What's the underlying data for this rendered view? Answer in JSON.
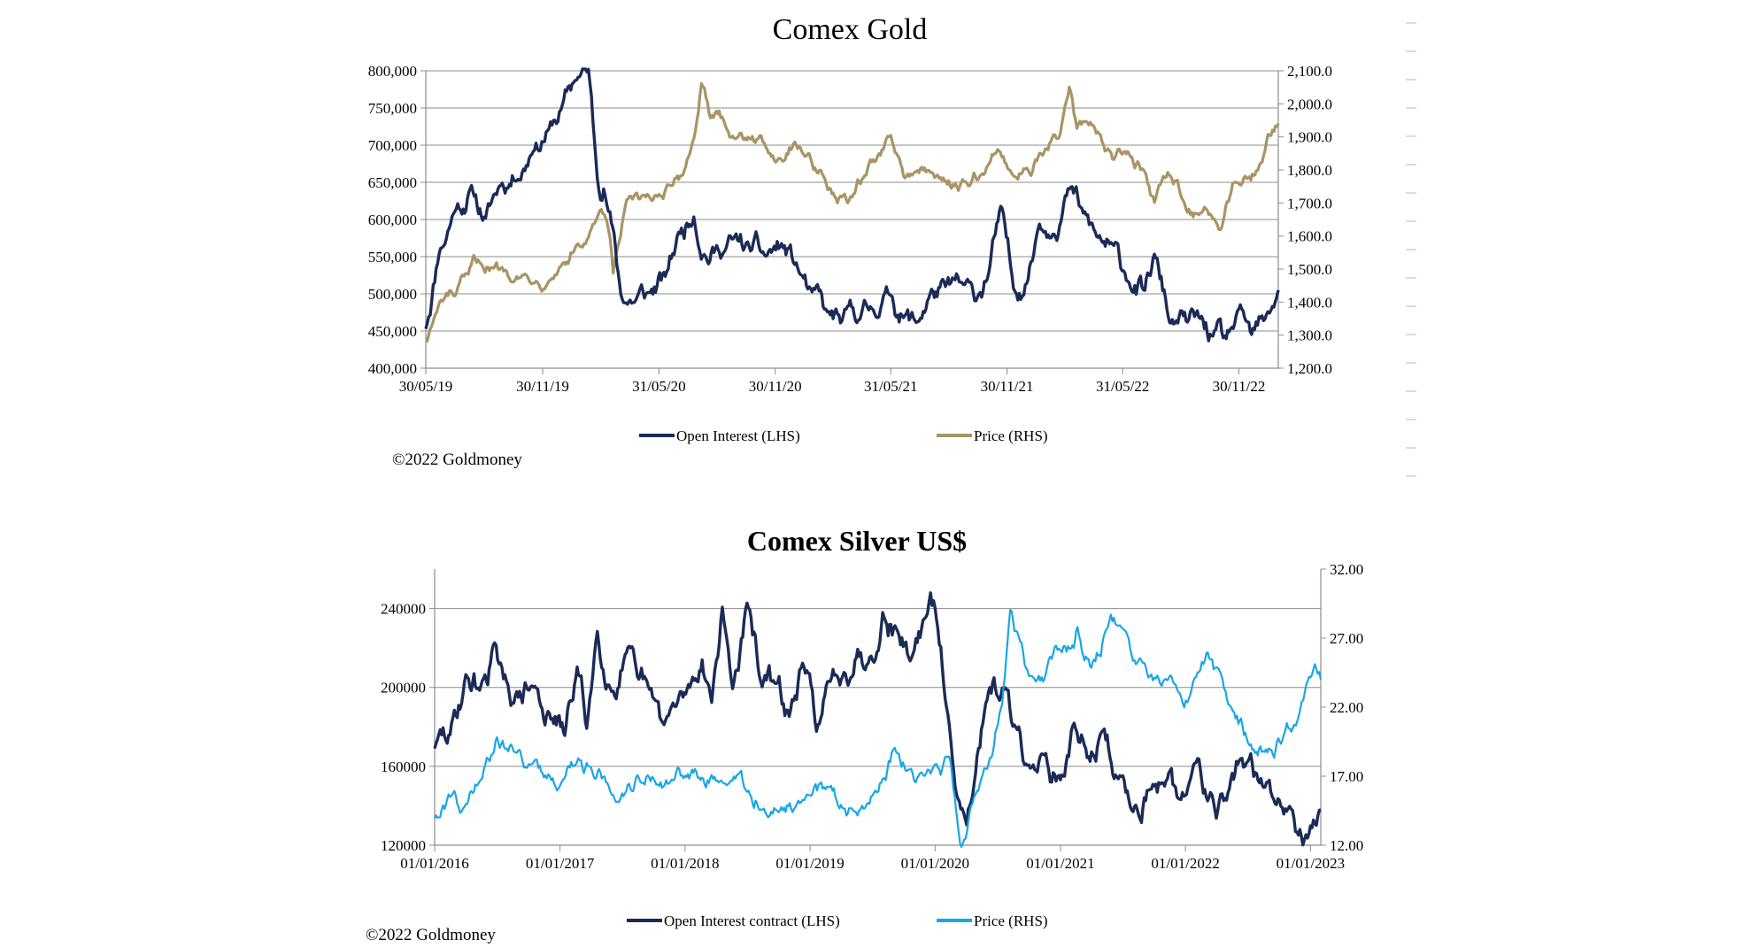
{
  "colors": {
    "navy": "#1b2b57",
    "gold": "#a99465",
    "cyan": "#19a6e4",
    "grid": "#8c8c8c"
  },
  "chart_data": [
    {
      "type": "line",
      "title": "Comex Gold",
      "x_tick_labels": [
        "30/05/19",
        "30/11/19",
        "31/05/20",
        "30/11/20",
        "31/05/21",
        "30/11/21",
        "31/05/22",
        "30/11/22"
      ],
      "x_range": [
        "2019-05-30",
        "2023-01-31"
      ],
      "y_left": {
        "ticks": [
          "400,000",
          "450,000",
          "500,000",
          "550,000",
          "600,000",
          "650,000",
          "700,000",
          "750,000",
          "800,000"
        ],
        "range": [
          400000,
          800000
        ]
      },
      "y_right": {
        "ticks": [
          "1,200.0",
          "1,300.0",
          "1,400.0",
          "1,500.0",
          "1,600.0",
          "1,700.0",
          "1,800.0",
          "1,900.0",
          "2,000.0",
          "2,100.0"
        ],
        "range": [
          1200,
          2100
        ]
      },
      "series": [
        {
          "name": "Open Interest (LHS)",
          "axis": "left",
          "x": [
            "2019-05-30",
            "2019-06-20",
            "2019-07-15",
            "2019-08-10",
            "2019-09-01",
            "2019-09-25",
            "2019-10-20",
            "2019-11-15",
            "2019-12-10",
            "2019-12-31",
            "2020-01-20",
            "2020-02-10",
            "2020-02-24",
            "2020-03-05",
            "2020-03-15",
            "2020-04-01",
            "2020-04-20",
            "2020-05-15",
            "2020-06-10",
            "2020-07-01",
            "2020-07-25",
            "2020-08-15",
            "2020-09-01",
            "2020-09-25",
            "2020-10-20",
            "2020-11-15",
            "2020-12-10",
            "2020-12-31",
            "2021-01-25",
            "2021-02-20",
            "2021-03-15",
            "2021-04-10",
            "2021-05-01",
            "2021-05-31",
            "2021-06-20",
            "2021-07-10",
            "2021-08-01",
            "2021-08-25",
            "2021-09-20",
            "2021-10-10",
            "2021-11-01",
            "2021-11-20",
            "2021-12-10",
            "2021-12-31",
            "2022-01-20",
            "2022-02-10",
            "2022-03-08",
            "2022-03-30",
            "2022-04-20",
            "2022-05-15",
            "2022-06-10",
            "2022-07-05",
            "2022-07-20",
            "2022-08-15",
            "2022-09-10",
            "2022-09-30",
            "2022-10-20",
            "2022-11-10",
            "2022-11-30",
            "2022-12-20",
            "2023-01-10",
            "2023-01-31"
          ],
          "values": [
            455000,
            560000,
            615000,
            640000,
            600000,
            650000,
            660000,
            700000,
            720000,
            750000,
            790000,
            800000,
            660000,
            650000,
            610000,
            500000,
            490000,
            500000,
            520000,
            580000,
            610000,
            550000,
            560000,
            570000,
            560000,
            550000,
            565000,
            540000,
            500000,
            470000,
            460000,
            470000,
            480000,
            500000,
            470000,
            460000,
            500000,
            505000,
            510000,
            490000,
            530000,
            610000,
            510000,
            520000,
            600000,
            590000,
            640000,
            605000,
            575000,
            560000,
            520000,
            500000,
            550000,
            460000,
            460000,
            465000,
            440000,
            435000,
            470000,
            440000,
            460000,
            505000
          ]
        },
        {
          "name": "Price (RHS)",
          "axis": "right",
          "x": [
            "2019-05-30",
            "2019-06-10",
            "2019-06-25",
            "2019-07-15",
            "2019-08-05",
            "2019-08-20",
            "2019-09-05",
            "2019-09-25",
            "2019-10-20",
            "2019-11-15",
            "2019-12-10",
            "2019-12-31",
            "2020-01-20",
            "2020-02-10",
            "2020-02-24",
            "2020-03-10",
            "2020-03-20",
            "2020-04-10",
            "2020-05-01",
            "2020-05-31",
            "2020-06-20",
            "2020-07-10",
            "2020-07-25",
            "2020-08-06",
            "2020-08-20",
            "2020-09-10",
            "2020-10-01",
            "2020-10-25",
            "2020-11-15",
            "2020-12-05",
            "2020-12-31",
            "2021-01-20",
            "2021-02-10",
            "2021-03-08",
            "2021-03-31",
            "2021-04-20",
            "2021-05-10",
            "2021-05-31",
            "2021-06-20",
            "2021-07-10",
            "2021-08-01",
            "2021-08-15",
            "2021-09-10",
            "2021-09-30",
            "2021-10-20",
            "2021-11-15",
            "2021-12-10",
            "2021-12-31",
            "2022-01-25",
            "2022-02-20",
            "2022-03-08",
            "2022-03-20",
            "2022-04-10",
            "2022-05-01",
            "2022-05-15",
            "2022-06-10",
            "2022-07-05",
            "2022-07-20",
            "2022-08-10",
            "2022-09-01",
            "2022-09-28",
            "2022-10-20",
            "2022-11-03",
            "2022-11-20",
            "2022-12-10",
            "2023-01-01",
            "2023-01-15",
            "2023-01-31"
          ],
          "values": [
            1285,
            1340,
            1400,
            1420,
            1470,
            1520,
            1510,
            1500,
            1490,
            1470,
            1480,
            1520,
            1560,
            1590,
            1650,
            1640,
            1480,
            1700,
            1700,
            1730,
            1740,
            1800,
            1900,
            2060,
            1950,
            1950,
            1900,
            1910,
            1870,
            1840,
            1890,
            1850,
            1800,
            1690,
            1720,
            1780,
            1840,
            1900,
            1780,
            1800,
            1790,
            1770,
            1760,
            1750,
            1780,
            1860,
            1790,
            1810,
            1840,
            1900,
            2050,
            1920,
            1940,
            1880,
            1830,
            1850,
            1800,
            1700,
            1790,
            1720,
            1660,
            1640,
            1630,
            1760,
            1790,
            1820,
            1910,
            1940
          ]
        }
      ]
    },
    {
      "type": "line",
      "title": "Comex Silver US$",
      "x_tick_labels": [
        "01/01/2016",
        "01/01/2017",
        "01/01/2018",
        "01/01/2019",
        "01/01/2020",
        "01/01/2021",
        "01/01/2022",
        "01/01/2023"
      ],
      "x_range": [
        "2016-01-01",
        "2023-01-31"
      ],
      "y_left": {
        "ticks": [
          "120000",
          "160000",
          "200000",
          "240000"
        ],
        "range": [
          120000,
          260000
        ]
      },
      "y_right": {
        "ticks": [
          "12.00",
          "17.00",
          "22.00",
          "27.00",
          "32.00"
        ],
        "range": [
          12,
          32
        ]
      },
      "series": [
        {
          "name": "Open Interest contract (LHS)",
          "axis": "left",
          "x": [
            "2016-01-01",
            "2016-02-15",
            "2016-04-01",
            "2016-05-15",
            "2016-06-20",
            "2016-07-20",
            "2016-09-01",
            "2016-10-15",
            "2016-12-01",
            "2017-01-15",
            "2017-02-20",
            "2017-03-20",
            "2017-04-20",
            "2017-06-01",
            "2017-07-10",
            "2017-08-15",
            "2017-09-20",
            "2017-11-01",
            "2017-12-10",
            "2018-01-15",
            "2018-02-20",
            "2018-03-20",
            "2018-04-20",
            "2018-05-20",
            "2018-07-01",
            "2018-08-10",
            "2018-09-20",
            "2018-11-01",
            "2018-12-10",
            "2019-01-20",
            "2019-03-01",
            "2019-04-10",
            "2019-05-20",
            "2019-06-20",
            "2019-08-01",
            "2019-09-10",
            "2019-10-20",
            "2019-12-01",
            "2020-01-01",
            "2020-02-20",
            "2020-03-20",
            "2020-04-20",
            "2020-06-01",
            "2020-07-15",
            "2020-08-15",
            "2020-10-01",
            "2020-11-15",
            "2021-01-01",
            "2021-02-10",
            "2021-03-20",
            "2021-05-01",
            "2021-06-15",
            "2021-08-01",
            "2021-09-15",
            "2021-11-01",
            "2021-12-15",
            "2022-02-01",
            "2022-03-15",
            "2022-05-01",
            "2022-06-15",
            "2022-08-01",
            "2022-09-15",
            "2022-11-01",
            "2022-12-01",
            "2023-01-01",
            "2023-01-31"
          ],
          "values": [
            170000,
            175000,
            205000,
            200000,
            220000,
            200000,
            195000,
            200000,
            185000,
            175000,
            210000,
            180000,
            230000,
            200000,
            215000,
            200000,
            195000,
            180000,
            190000,
            200000,
            215000,
            195000,
            240000,
            200000,
            240000,
            205000,
            200000,
            185000,
            210000,
            180000,
            200000,
            210000,
            220000,
            215000,
            240000,
            230000,
            215000,
            235000,
            240000,
            165000,
            140000,
            150000,
            190000,
            200000,
            180000,
            160000,
            165000,
            150000,
            180000,
            165000,
            175000,
            155000,
            140000,
            150000,
            145000,
            140000,
            160000,
            150000,
            145000,
            165000,
            150000,
            145000,
            140000,
            130000,
            135000,
            138000
          ]
        },
        {
          "name": "Price (RHS)",
          "axis": "right",
          "x": [
            "2016-01-01",
            "2016-02-15",
            "2016-04-01",
            "2016-05-15",
            "2016-07-01",
            "2016-08-15",
            "2016-10-01",
            "2016-11-15",
            "2017-01-01",
            "2017-02-15",
            "2017-04-01",
            "2017-05-15",
            "2017-07-01",
            "2017-08-15",
            "2017-10-01",
            "2017-11-15",
            "2018-01-01",
            "2018-02-15",
            "2018-04-01",
            "2018-05-15",
            "2018-07-01",
            "2018-08-15",
            "2018-10-01",
            "2018-11-15",
            "2019-01-01",
            "2019-02-15",
            "2019-04-01",
            "2019-05-15",
            "2019-06-15",
            "2019-08-01",
            "2019-09-05",
            "2019-10-15",
            "2019-12-01",
            "2020-01-01",
            "2020-02-15",
            "2020-03-18",
            "2020-04-15",
            "2020-06-01",
            "2020-07-15",
            "2020-08-07",
            "2020-09-01",
            "2020-10-01",
            "2020-11-15",
            "2021-01-01",
            "2021-02-01",
            "2021-02-20",
            "2021-04-01",
            "2021-05-15",
            "2021-06-15",
            "2021-08-01",
            "2021-09-15",
            "2021-11-01",
            "2021-12-15",
            "2022-01-15",
            "2022-03-07",
            "2022-04-15",
            "2022-05-15",
            "2022-07-15",
            "2022-09-01",
            "2022-10-15",
            "2022-11-15",
            "2022-12-15",
            "2023-01-01",
            "2023-01-31"
          ],
          "values": [
            14,
            15.5,
            15,
            16.5,
            20,
            19,
            18,
            17,
            16.5,
            18,
            18,
            16.5,
            16,
            17,
            17,
            16.5,
            17,
            16.5,
            16.5,
            16.5,
            16,
            15,
            14.5,
            14.5,
            15.5,
            15.8,
            15,
            14.5,
            15,
            17,
            19,
            17.5,
            17,
            18,
            18,
            12,
            15,
            17.5,
            22,
            29,
            27,
            24,
            24,
            26,
            26.5,
            28,
            25,
            27.5,
            28,
            25,
            24,
            24,
            23,
            23,
            26,
            24,
            22,
            19,
            19,
            20,
            21,
            23,
            24,
            24
          ]
        }
      ]
    }
  ],
  "gold": {
    "title": "Comex Gold",
    "legend_oi": "Open Interest (LHS)",
    "legend_price": "Price (RHS)",
    "copyright": "©2022 Goldmoney"
  },
  "silver": {
    "title": "Comex Silver US$",
    "legend_oi": "Open Interest contract (LHS)",
    "legend_price": "Price (RHS)",
    "copyright": "©2022 Goldmoney"
  }
}
